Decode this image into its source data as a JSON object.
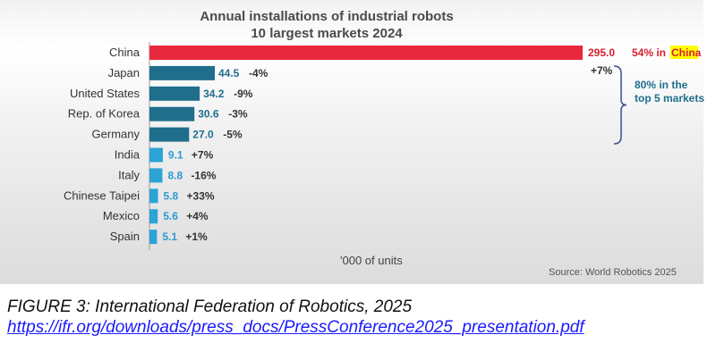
{
  "chart_data": {
    "type": "bar",
    "orientation": "horizontal",
    "title": "Annual installations of industrial robots",
    "subtitle": "10 largest markets 2024",
    "unit_label": "'000 of units",
    "source": "Source: World Robotics 2025",
    "categories": [
      "China",
      "Japan",
      "United States",
      "Rep. of Korea",
      "Germany",
      "India",
      "Italy",
      "Chinese Taipei",
      "Mexico",
      "Spain"
    ],
    "values": [
      295.0,
      44.5,
      34.2,
      30.6,
      27.0,
      9.1,
      8.8,
      5.8,
      5.6,
      5.1
    ],
    "value_labels": [
      "295.0",
      "44.5",
      "34.2",
      "30.6",
      "27.0",
      "9.1",
      "8.8",
      "5.8",
      "5.6",
      "5.1"
    ],
    "changes": [
      "+7%",
      "-4%",
      "-9%",
      "-3%",
      "-5%",
      "+7%",
      "-16%",
      "+33%",
      "+4%",
      "+1%"
    ],
    "xlim": [
      0,
      295
    ],
    "grid": false,
    "colors": {
      "china": "#e8283c",
      "top5": "#1f6e8c",
      "others": "#2ba3d6",
      "china_label": "#d81e2c",
      "top5_label": "#1f6e8c",
      "others_label": "#2b9bd0",
      "bracket": "#3b4d8f",
      "highlight": "#ffff00"
    },
    "annotations": {
      "china_share_prefix": "54% in ",
      "china_share_highlight": "China",
      "top5_line1": "80% in the",
      "top5_line2": "top 5 markets"
    }
  },
  "caption": {
    "figure": "FIGURE 3: International Federation of Robotics, 2025",
    "link": "https://ifr.org/downloads/press_docs/PressConference2025_presentation.pdf"
  }
}
